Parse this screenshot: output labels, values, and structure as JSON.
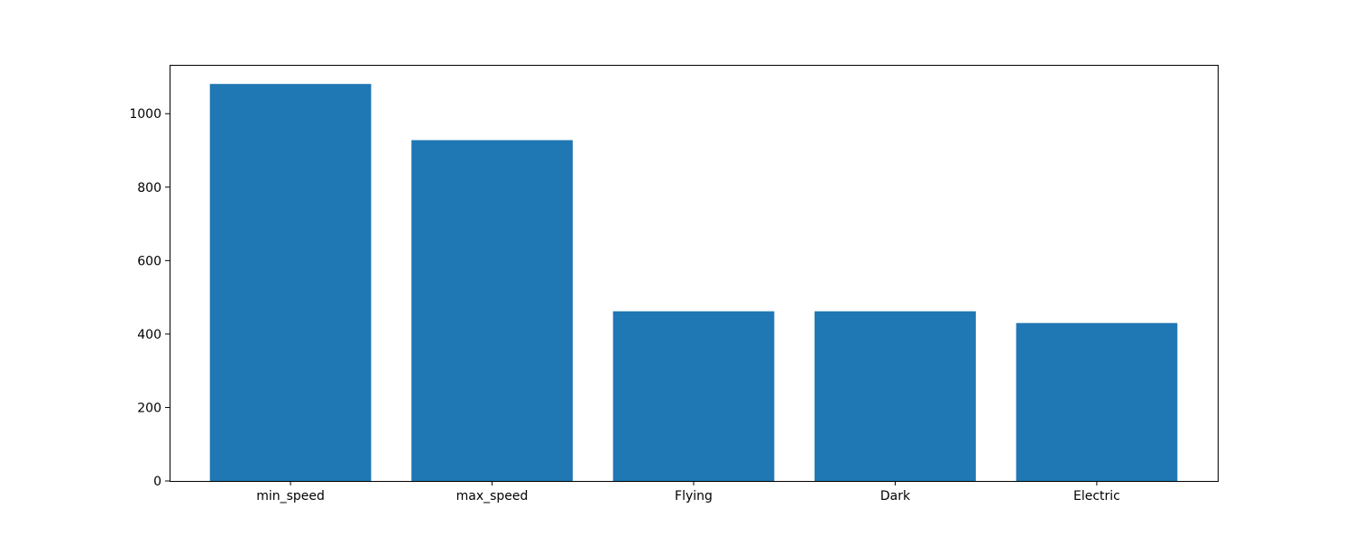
{
  "chart_data": {
    "type": "bar",
    "categories": [
      "min_speed",
      "max_speed",
      "Flying",
      "Dark",
      "Electric"
    ],
    "values": [
      1081,
      928,
      462,
      462,
      430
    ],
    "title": "",
    "xlabel": "",
    "ylabel": "",
    "ylim": [
      0,
      1133
    ],
    "yticks": [
      0,
      200,
      400,
      600,
      800,
      1000
    ],
    "bar_color": "#1f77b4",
    "grid": false
  }
}
